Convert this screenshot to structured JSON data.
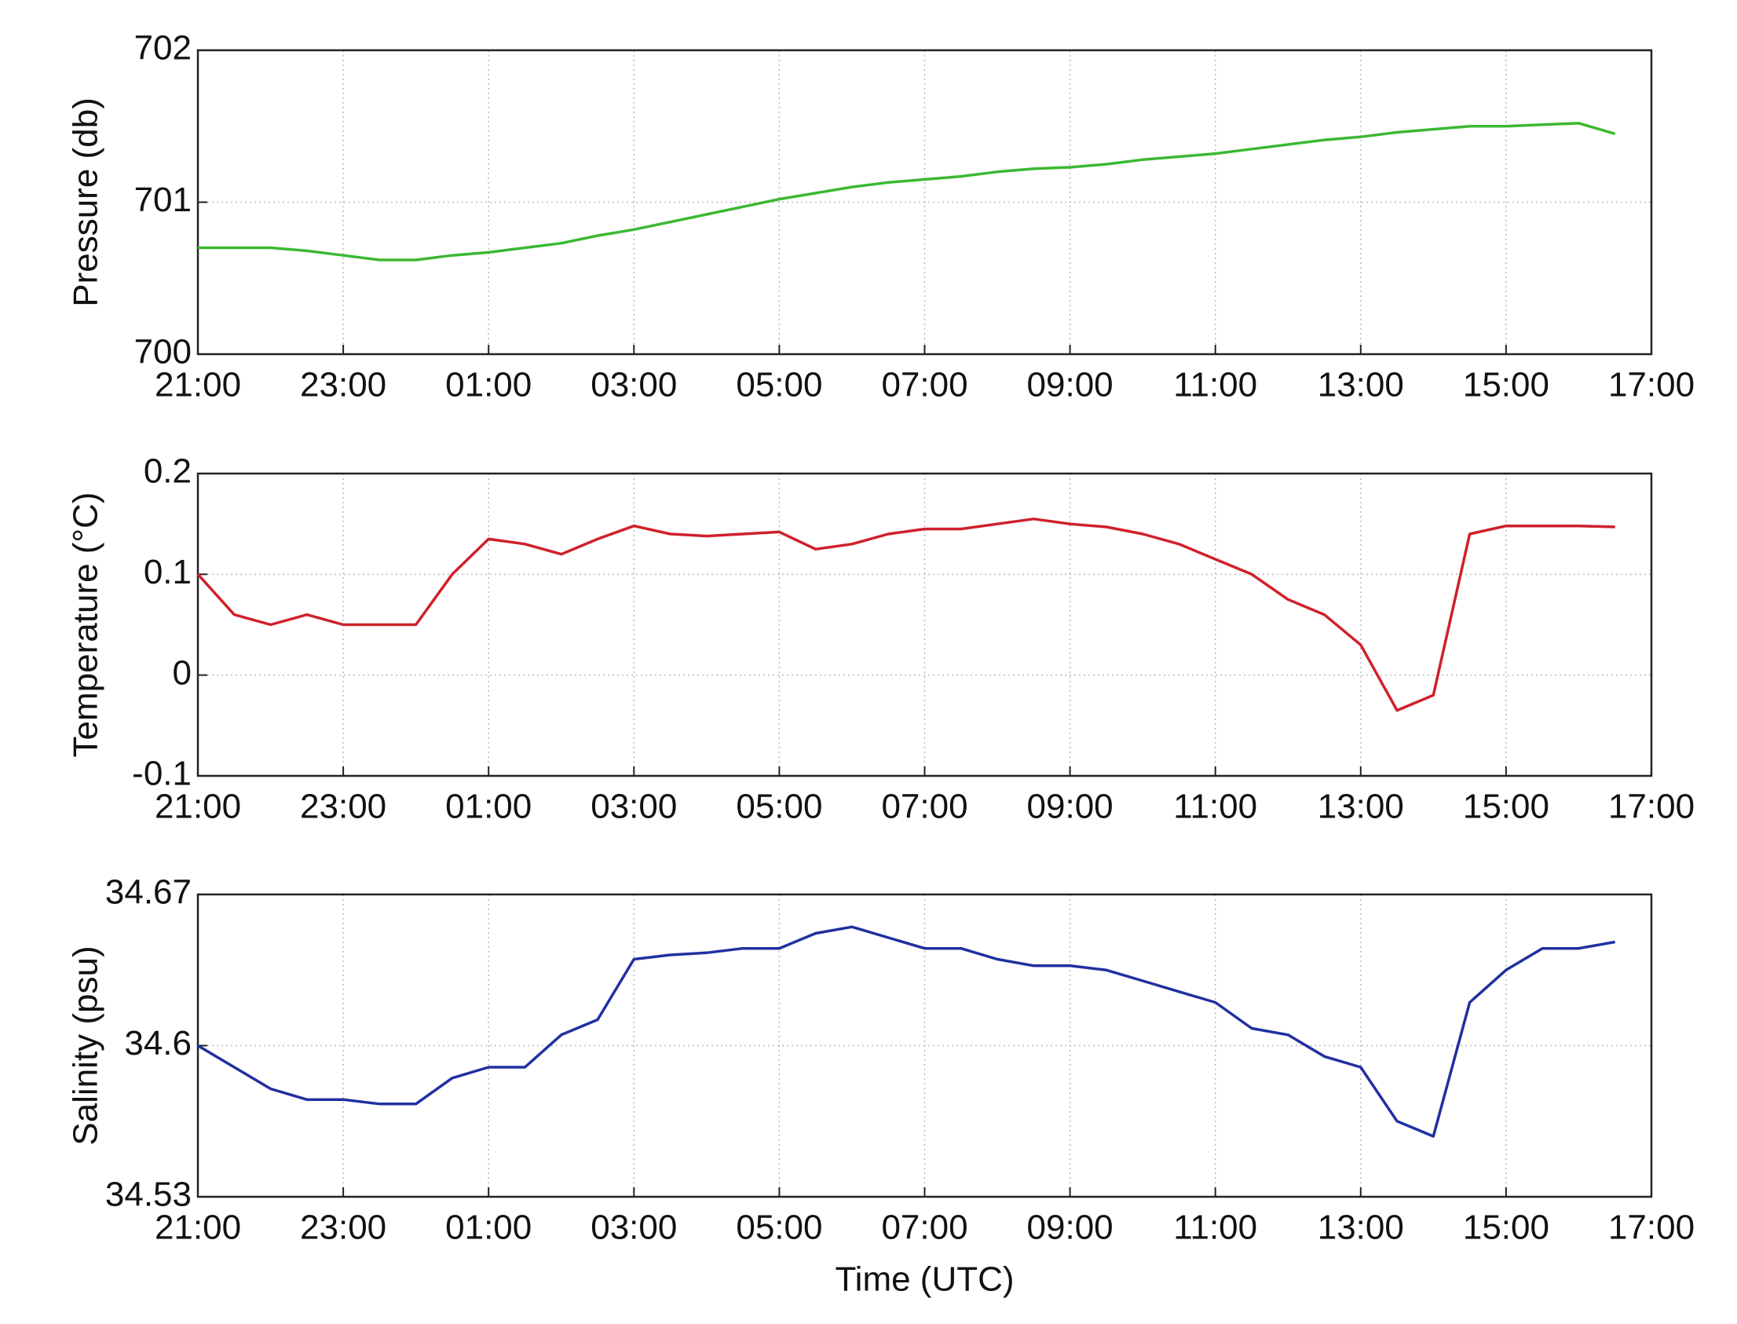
{
  "chart_data": [
    {
      "type": "line",
      "ylabel": "Pressure (db)",
      "color": "#3cb832",
      "x": [
        "21:00",
        "21:30",
        "22:00",
        "22:30",
        "23:00",
        "23:30",
        "00:00",
        "00:30",
        "01:00",
        "01:30",
        "02:00",
        "02:30",
        "03:00",
        "03:30",
        "04:00",
        "04:30",
        "05:00",
        "05:30",
        "06:00",
        "06:30",
        "07:00",
        "07:30",
        "08:00",
        "08:30",
        "09:00",
        "09:30",
        "10:00",
        "10:30",
        "11:00",
        "11:30",
        "12:00",
        "12:30",
        "13:00",
        "13:30",
        "14:00",
        "14:30",
        "15:00",
        "15:30",
        "16:00",
        "16:30"
      ],
      "values": [
        700.7,
        700.7,
        700.7,
        700.68,
        700.65,
        700.62,
        700.62,
        700.65,
        700.67,
        700.7,
        700.73,
        700.78,
        700.82,
        700.87,
        700.92,
        700.97,
        701.02,
        701.06,
        701.1,
        701.13,
        701.15,
        701.17,
        701.2,
        701.22,
        701.23,
        701.25,
        701.28,
        701.3,
        701.32,
        701.35,
        701.38,
        701.41,
        701.43,
        701.46,
        701.48,
        701.5,
        701.5,
        701.51,
        701.52,
        701.45
      ],
      "xlim": [
        "21:00",
        "17:00"
      ],
      "xticks": [
        "21:00",
        "23:00",
        "01:00",
        "03:00",
        "05:00",
        "07:00",
        "09:00",
        "11:00",
        "13:00",
        "15:00",
        "17:00"
      ],
      "ylim": [
        700,
        702
      ],
      "yticks": [
        700,
        701,
        702
      ],
      "grid": true
    },
    {
      "type": "line",
      "ylabel": "Temperature (°C)",
      "color": "#d0202a",
      "x": [
        "21:00",
        "21:30",
        "22:00",
        "22:30",
        "23:00",
        "23:30",
        "00:00",
        "00:30",
        "01:00",
        "01:30",
        "02:00",
        "02:30",
        "03:00",
        "03:30",
        "04:00",
        "04:30",
        "05:00",
        "05:30",
        "06:00",
        "06:30",
        "07:00",
        "07:30",
        "08:00",
        "08:30",
        "09:00",
        "09:30",
        "10:00",
        "10:30",
        "11:00",
        "11:30",
        "12:00",
        "12:30",
        "13:00",
        "13:30",
        "14:00",
        "14:30",
        "15:00",
        "15:30",
        "16:00",
        "16:30"
      ],
      "values": [
        0.1,
        0.06,
        0.05,
        0.06,
        0.05,
        0.05,
        0.05,
        0.1,
        0.135,
        0.13,
        0.12,
        0.135,
        0.148,
        0.14,
        0.138,
        0.14,
        0.142,
        0.125,
        0.13,
        0.14,
        0.145,
        0.145,
        0.15,
        0.155,
        0.15,
        0.147,
        0.14,
        0.13,
        0.115,
        0.1,
        0.075,
        0.06,
        0.03,
        -0.035,
        -0.02,
        0.14,
        0.148,
        0.148,
        0.148,
        0.147
      ],
      "xlim": [
        "21:00",
        "17:00"
      ],
      "xticks": [
        "21:00",
        "23:00",
        "01:00",
        "03:00",
        "05:00",
        "07:00",
        "09:00",
        "11:00",
        "13:00",
        "15:00",
        "17:00"
      ],
      "ylim": [
        -0.1,
        0.2
      ],
      "yticks": [
        -0.1,
        0,
        0.1,
        0.2
      ],
      "grid": true
    },
    {
      "type": "line",
      "ylabel": "Salinity (psu)",
      "xlabel": "Time (UTC)",
      "color": "#2030a0",
      "x": [
        "21:00",
        "21:30",
        "22:00",
        "22:30",
        "23:00",
        "23:30",
        "00:00",
        "00:30",
        "01:00",
        "01:30",
        "02:00",
        "02:30",
        "03:00",
        "03:30",
        "04:00",
        "04:30",
        "05:00",
        "05:30",
        "06:00",
        "06:30",
        "07:00",
        "07:30",
        "08:00",
        "08:30",
        "09:00",
        "09:30",
        "10:00",
        "10:30",
        "11:00",
        "11:30",
        "12:00",
        "12:30",
        "13:00",
        "13:30",
        "14:00",
        "14:30",
        "15:00",
        "15:30",
        "16:00",
        "16:30"
      ],
      "values": [
        34.6,
        34.59,
        34.58,
        34.575,
        34.575,
        34.573,
        34.573,
        34.585,
        34.59,
        34.59,
        34.605,
        34.612,
        34.64,
        34.642,
        34.643,
        34.645,
        34.645,
        34.652,
        34.655,
        34.65,
        34.645,
        34.645,
        34.64,
        34.637,
        34.637,
        34.635,
        34.63,
        34.625,
        34.62,
        34.608,
        34.605,
        34.595,
        34.59,
        34.565,
        34.558,
        34.62,
        34.635,
        34.645,
        34.645,
        34.648
      ],
      "xlim": [
        "21:00",
        "17:00"
      ],
      "xticks": [
        "21:00",
        "23:00",
        "01:00",
        "03:00",
        "05:00",
        "07:00",
        "09:00",
        "11:00",
        "13:00",
        "15:00",
        "17:00"
      ],
      "ylim": [
        34.53,
        34.67
      ],
      "yticks": [
        34.53,
        34.6,
        34.67
      ],
      "grid": true
    }
  ]
}
